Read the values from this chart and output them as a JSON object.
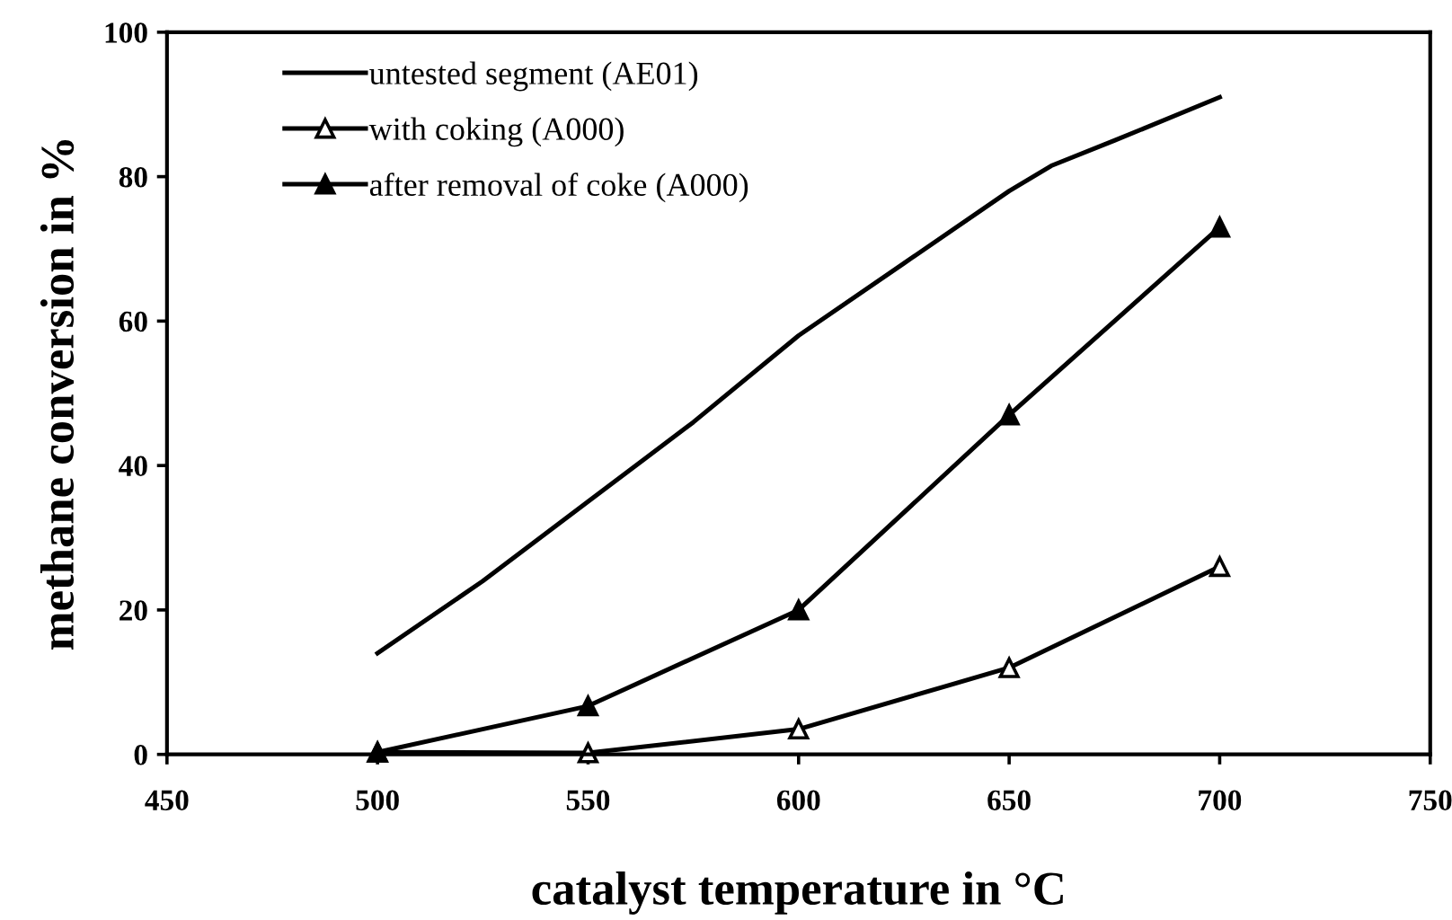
{
  "chart_data": {
    "type": "line",
    "xlabel": "catalyst temperature in °C",
    "ylabel": "methane conversion in %",
    "xlim": [
      450,
      750
    ],
    "xticks": [
      450,
      500,
      550,
      600,
      650,
      700,
      750
    ],
    "ylim": [
      0,
      100
    ],
    "yticks": [
      0,
      20,
      40,
      60,
      80,
      100
    ],
    "grid": false,
    "legend": "top left",
    "line_style": "solid",
    "series": [
      {
        "name": "untested segment (AE01)",
        "color": "#000000",
        "marker": "none",
        "x": [
          500,
          525,
          550,
          575,
          600,
          625,
          650,
          660,
          675,
          700
        ],
        "values": [
          14,
          24,
          35,
          46,
          58,
          68,
          78,
          81.5,
          85,
          91
        ]
      },
      {
        "name": "with coking (A000)",
        "color": "#000000",
        "marker": "triangle-open",
        "x": [
          500,
          550,
          600,
          650,
          700
        ],
        "values": [
          0.3,
          0.2,
          3.5,
          12,
          26
        ]
      },
      {
        "name": "after removal of coke (A000)",
        "color": "#000000",
        "marker": "triangle",
        "x": [
          500,
          550,
          600,
          650,
          700
        ],
        "values": [
          0.3,
          6.7,
          20,
          47,
          73
        ]
      }
    ]
  }
}
